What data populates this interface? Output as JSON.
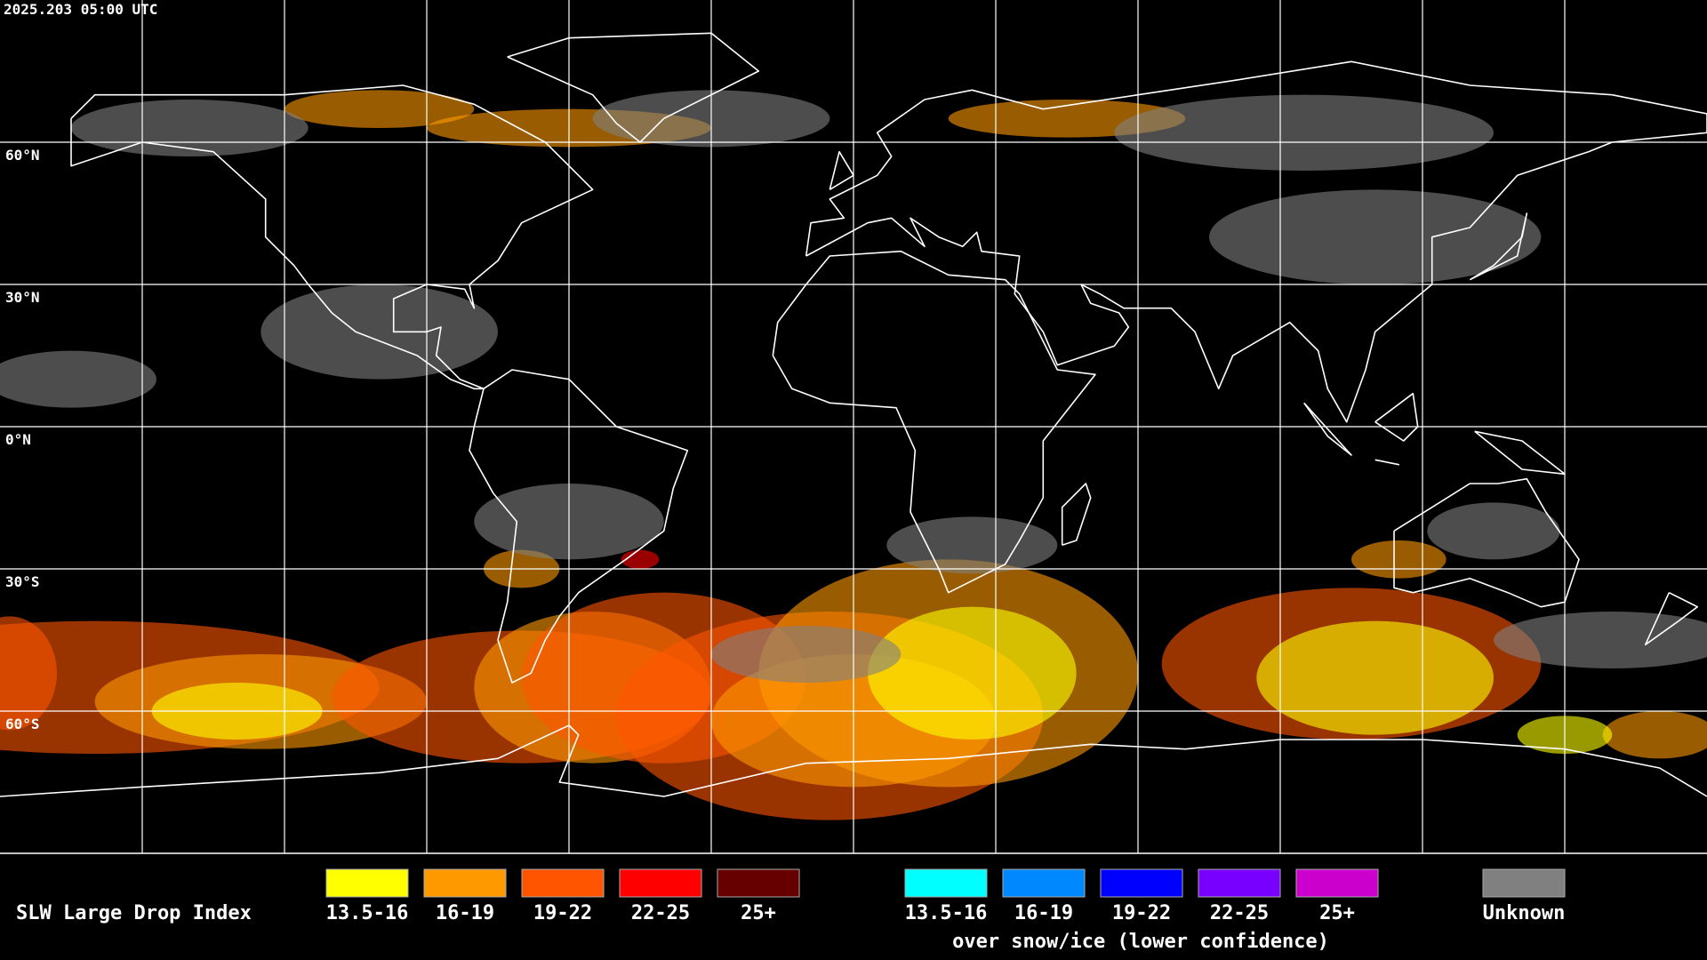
{
  "timestamp": "2025.203 05:00 UTC",
  "map": {
    "latitude_labels": [
      "60°N",
      "30°N",
      "0°N",
      "30°S",
      "60°S"
    ]
  },
  "legend": {
    "title": "SLW Large Drop Index",
    "items": [
      {
        "label": "13.5-16",
        "color": "#ffff00"
      },
      {
        "label": "16-19",
        "color": "#ff9900"
      },
      {
        "label": "19-22",
        "color": "#ff5500"
      },
      {
        "label": "22-25",
        "color": "#ff0000"
      },
      {
        "label": "25+",
        "color": "#660000"
      }
    ],
    "snow_ice_items": [
      {
        "label": "13.5-16",
        "color": "#00ffff"
      },
      {
        "label": "16-19",
        "color": "#0088ff"
      },
      {
        "label": "19-22",
        "color": "#0000ff"
      },
      {
        "label": "22-25",
        "color": "#7700ff"
      },
      {
        "label": "25+",
        "color": "#cc00cc"
      }
    ],
    "snow_ice_caption": "over snow/ice (lower confidence)",
    "unknown": {
      "label": "Unknown",
      "color": "#808080"
    }
  }
}
